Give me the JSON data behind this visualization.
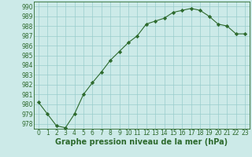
{
  "x": [
    0,
    1,
    2,
    3,
    4,
    5,
    6,
    7,
    8,
    9,
    10,
    11,
    12,
    13,
    14,
    15,
    16,
    17,
    18,
    19,
    20,
    21,
    22,
    23
  ],
  "y": [
    980.2,
    979.0,
    977.8,
    977.6,
    979.0,
    981.0,
    982.2,
    983.3,
    984.5,
    985.4,
    986.3,
    987.0,
    988.2,
    988.5,
    988.8,
    989.4,
    989.6,
    989.8,
    989.6,
    989.0,
    988.2,
    988.0,
    987.2,
    987.2
  ],
  "xlim": [
    -0.5,
    23.5
  ],
  "ylim": [
    977.5,
    990.5
  ],
  "yticks": [
    978,
    979,
    980,
    981,
    982,
    983,
    984,
    985,
    986,
    987,
    988,
    989,
    990
  ],
  "xticks": [
    0,
    1,
    2,
    3,
    4,
    5,
    6,
    7,
    8,
    9,
    10,
    11,
    12,
    13,
    14,
    15,
    16,
    17,
    18,
    19,
    20,
    21,
    22,
    23
  ],
  "xlabel": "Graphe pression niveau de la mer (hPa)",
  "line_color": "#2d6a2d",
  "marker": "D",
  "marker_size": 2.2,
  "bg_color": "#cceae8",
  "grid_color": "#99cccc",
  "tick_fontsize": 5.5,
  "label_fontsize": 7.0
}
